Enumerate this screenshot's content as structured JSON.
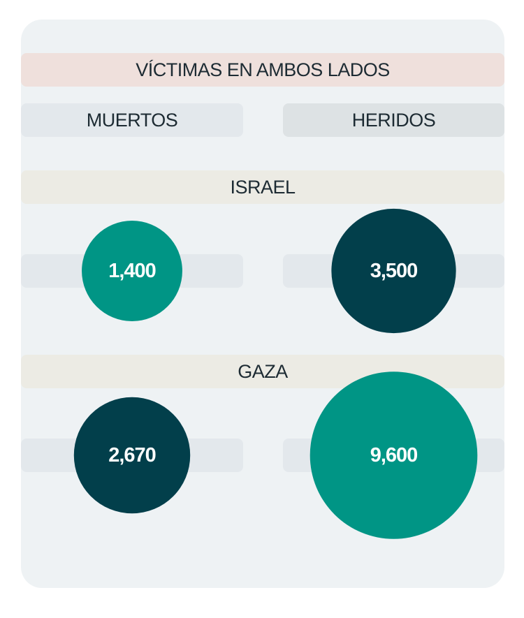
{
  "chart_data": {
    "type": "bubble",
    "title": "VÍCTIMAS EN AMBOS LADOS",
    "columns": [
      "MUERTOS",
      "HERIDOS"
    ],
    "rows": [
      {
        "name": "ISRAEL",
        "values": [
          1400,
          3500
        ],
        "value_labels": [
          "1,400",
          "3,500"
        ],
        "colors": [
          "#009585",
          "#023f4b"
        ]
      },
      {
        "name": "GAZA",
        "values": [
          2670,
          9600
        ],
        "value_labels": [
          "2,670",
          "9,600"
        ],
        "colors": [
          "#023f4b",
          "#009585"
        ]
      }
    ]
  }
}
